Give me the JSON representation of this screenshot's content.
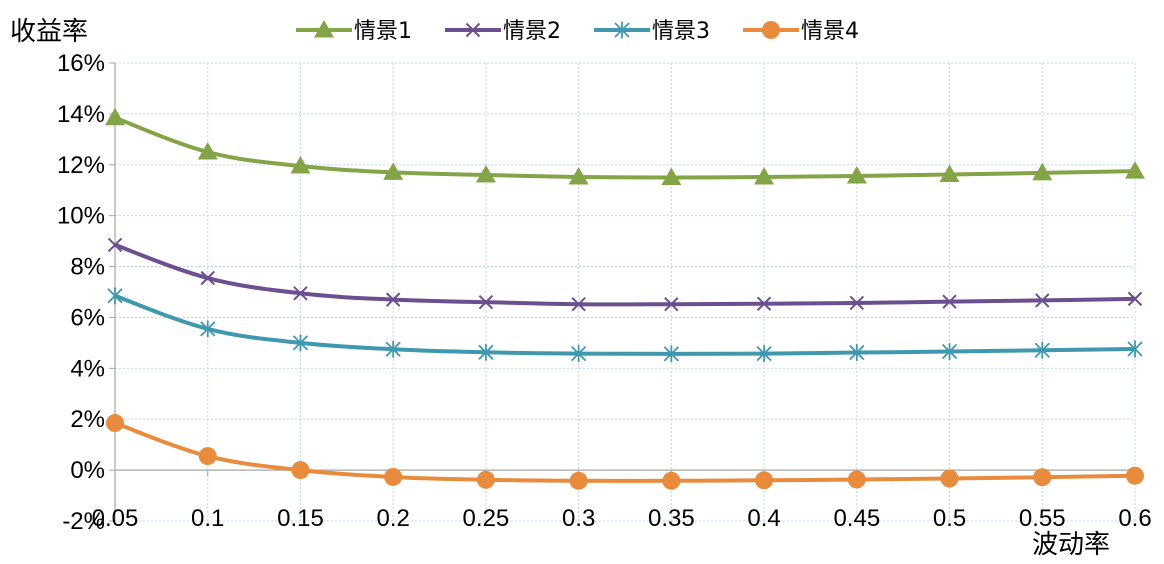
{
  "chart_data": {
    "type": "line",
    "title": "",
    "ylabel": "收益率",
    "xlabel": "波动率",
    "x": [
      "0.05",
      "0.1",
      "0.15",
      "0.2",
      "0.25",
      "0.3",
      "0.35",
      "0.4",
      "0.45",
      "0.5",
      "0.55",
      "0.6"
    ],
    "ylim": [
      -2,
      16
    ],
    "yticks": [
      "-2%",
      "0%",
      "2%",
      "4%",
      "6%",
      "8%",
      "10%",
      "12%",
      "14%",
      "16%"
    ],
    "grid": "dashed",
    "legend_position": "top",
    "series": [
      {
        "name": "情景1",
        "marker": "triangle",
        "color": "#84A448",
        "values": [
          13.85,
          12.5,
          11.95,
          11.7,
          11.6,
          11.52,
          11.5,
          11.52,
          11.56,
          11.62,
          11.68,
          11.75
        ]
      },
      {
        "name": "情景2",
        "marker": "x",
        "color": "#6B4F8E",
        "values": [
          8.85,
          7.55,
          6.95,
          6.7,
          6.6,
          6.52,
          6.52,
          6.54,
          6.57,
          6.62,
          6.67,
          6.73
        ]
      },
      {
        "name": "情景3",
        "marker": "asterisk",
        "color": "#3F98AE",
        "values": [
          6.85,
          5.55,
          5.0,
          4.75,
          4.63,
          4.58,
          4.57,
          4.58,
          4.62,
          4.66,
          4.71,
          4.76
        ]
      },
      {
        "name": "情景4",
        "marker": "circle",
        "color": "#E88B3C",
        "values": [
          1.85,
          0.55,
          0.0,
          -0.27,
          -0.38,
          -0.42,
          -0.42,
          -0.4,
          -0.37,
          -0.33,
          -0.28,
          -0.22
        ]
      }
    ]
  }
}
